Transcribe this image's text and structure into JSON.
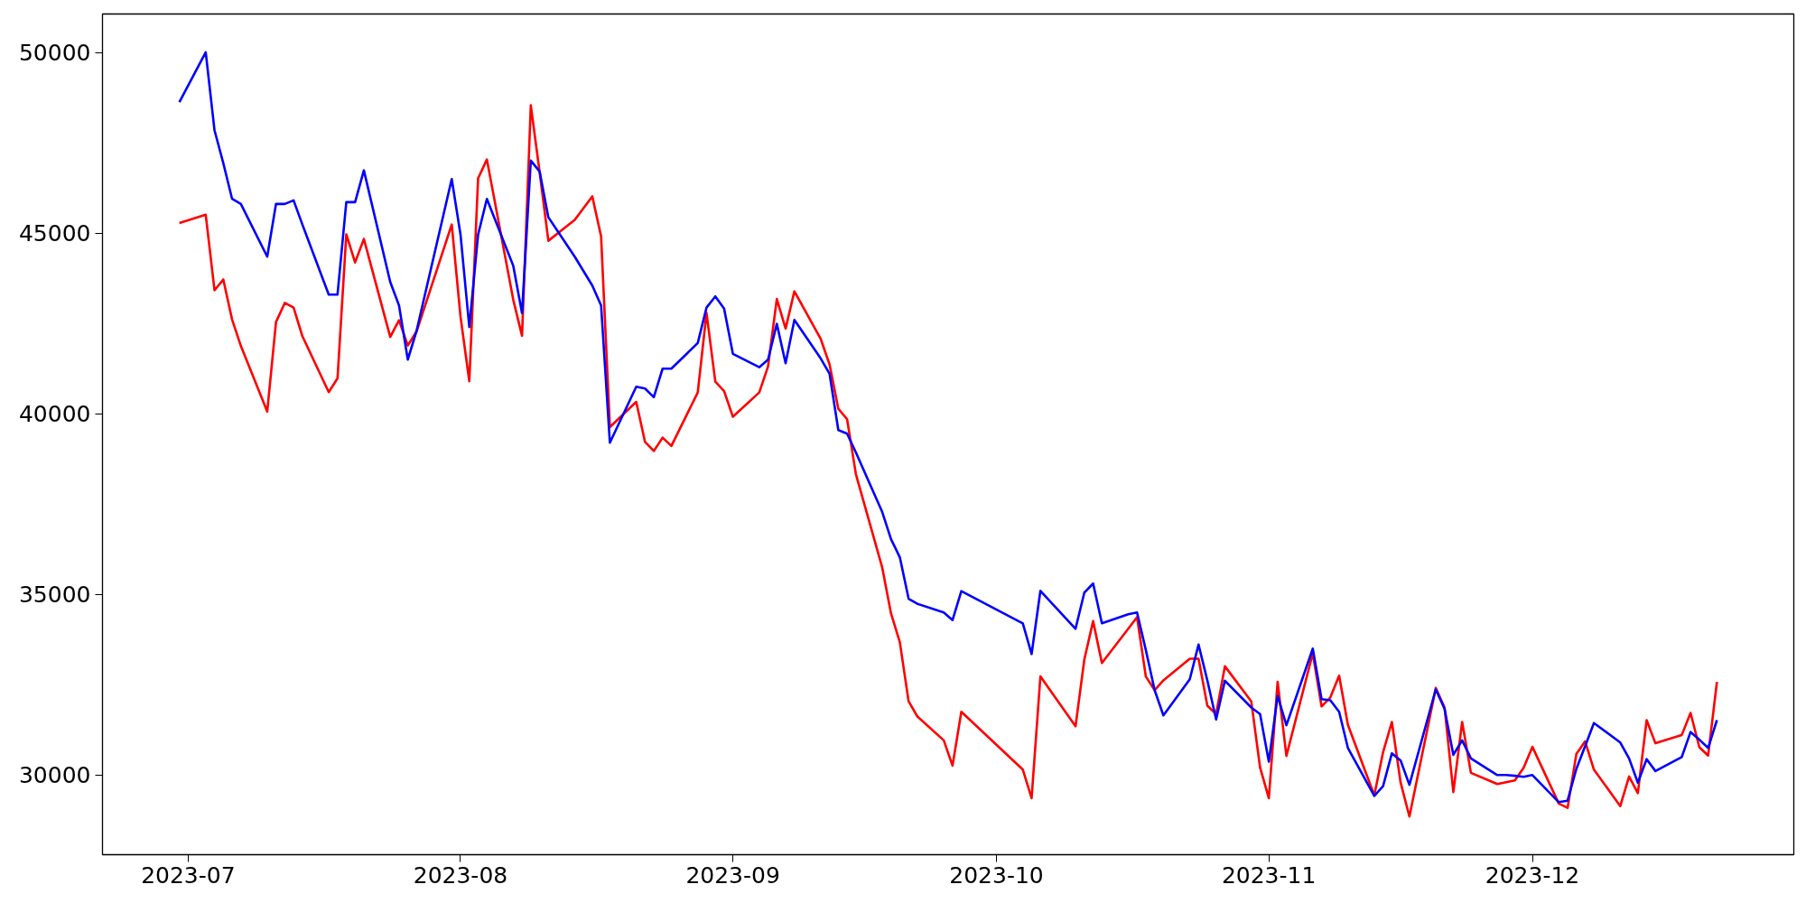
{
  "chart_data": {
    "type": "line",
    "x": [
      "2023-06-30",
      "2023-07-03",
      "2023-07-04",
      "2023-07-05",
      "2023-07-06",
      "2023-07-07",
      "2023-07-10",
      "2023-07-11",
      "2023-07-12",
      "2023-07-13",
      "2023-07-14",
      "2023-07-17",
      "2023-07-18",
      "2023-07-19",
      "2023-07-20",
      "2023-07-21",
      "2023-07-24",
      "2023-07-25",
      "2023-07-26",
      "2023-07-27",
      "2023-07-31",
      "2023-08-01",
      "2023-08-02",
      "2023-08-03",
      "2023-08-04",
      "2023-08-07",
      "2023-08-08",
      "2023-08-09",
      "2023-08-10",
      "2023-08-11",
      "2023-08-14",
      "2023-08-16",
      "2023-08-17",
      "2023-08-18",
      "2023-08-21",
      "2023-08-22",
      "2023-08-23",
      "2023-08-24",
      "2023-08-25",
      "2023-08-28",
      "2023-08-29",
      "2023-08-30",
      "2023-08-31",
      "2023-09-01",
      "2023-09-04",
      "2023-09-05",
      "2023-09-06",
      "2023-09-07",
      "2023-09-08",
      "2023-09-11",
      "2023-09-12",
      "2023-09-13",
      "2023-09-14",
      "2023-09-15",
      "2023-09-18",
      "2023-09-19",
      "2023-09-20",
      "2023-09-21",
      "2023-09-22",
      "2023-09-25",
      "2023-09-26",
      "2023-09-27",
      "2023-10-04",
      "2023-10-05",
      "2023-10-06",
      "2023-10-10",
      "2023-10-11",
      "2023-10-12",
      "2023-10-13",
      "2023-10-16",
      "2023-10-17",
      "2023-10-18",
      "2023-10-19",
      "2023-10-20",
      "2023-10-23",
      "2023-10-24",
      "2023-10-25",
      "2023-10-26",
      "2023-10-27",
      "2023-10-30",
      "2023-10-31",
      "2023-11-01",
      "2023-11-02",
      "2023-11-03",
      "2023-11-06",
      "2023-11-07",
      "2023-11-08",
      "2023-11-09",
      "2023-11-10",
      "2023-11-13",
      "2023-11-14",
      "2023-11-15",
      "2023-11-16",
      "2023-11-17",
      "2023-11-20",
      "2023-11-21",
      "2023-11-22",
      "2023-11-23",
      "2023-11-24",
      "2023-11-27",
      "2023-11-28",
      "2023-11-29",
      "2023-11-30",
      "2023-12-01",
      "2023-12-04",
      "2023-12-05",
      "2023-12-06",
      "2023-12-07",
      "2023-12-08",
      "2023-12-11",
      "2023-12-12",
      "2023-12-13",
      "2023-12-14",
      "2023-12-15",
      "2023-12-18",
      "2023-12-19",
      "2023-12-20",
      "2023-12-21",
      "2023-12-22"
    ],
    "series": [
      {
        "color": "#ff0000",
        "values": [
          45280,
          45510,
          43420,
          43720,
          42610,
          41880,
          40060,
          42540,
          43070,
          42940,
          42150,
          40600,
          40980,
          44970,
          44190,
          44840,
          42130,
          42590,
          41890,
          42280,
          45240,
          42690,
          40900,
          46520,
          47040,
          43160,
          42160,
          48540,
          46700,
          44790,
          45370,
          46020,
          44910,
          39630,
          40330,
          39220,
          38970,
          39340,
          39110,
          40590,
          42790,
          40890,
          40630,
          39920,
          40590,
          41310,
          43180,
          42360,
          43390,
          42070,
          41370,
          40140,
          39850,
          38330,
          35740,
          34470,
          33680,
          32040,
          31620,
          30960,
          30260,
          31750,
          30150,
          29360,
          32730,
          31350,
          33200,
          34260,
          33100,
          34050,
          34370,
          32730,
          32350,
          32620,
          33220,
          33220,
          31920,
          31690,
          33010,
          32040,
          30210,
          29360,
          32580,
          30530,
          33370,
          31900,
          32150,
          32750,
          31390,
          29440,
          30630,
          31470,
          29790,
          28850,
          32410,
          31870,
          29530,
          31470,
          30060,
          29750,
          29800,
          29850,
          30200,
          30780,
          29210,
          29090,
          30580,
          30930,
          30150,
          29140,
          29960,
          29500,
          31520,
          30880,
          31110,
          31720,
          30770,
          30540,
          32580
        ]
      },
      {
        "color": "#0000ff",
        "values": [
          48630,
          50010,
          47850,
          46940,
          45950,
          45810,
          44350,
          45810,
          45810,
          45910,
          45240,
          43300,
          43300,
          45860,
          45860,
          46740,
          43650,
          43000,
          41500,
          42300,
          46500,
          44960,
          42400,
          44960,
          45950,
          44100,
          42790,
          47010,
          46710,
          45440,
          44350,
          43550,
          43000,
          39200,
          40750,
          40700,
          40460,
          41250,
          41250,
          41960,
          42940,
          43250,
          42910,
          41660,
          41290,
          41500,
          42490,
          41400,
          42600,
          41530,
          41110,
          39550,
          39450,
          38930,
          37280,
          36530,
          36030,
          34880,
          34740,
          34500,
          34290,
          35090,
          34200,
          33350,
          35100,
          34050,
          35050,
          35300,
          34200,
          34450,
          34500,
          33460,
          32350,
          31650,
          32650,
          33610,
          32620,
          31540,
          32610,
          31870,
          31690,
          30370,
          32190,
          31380,
          33500,
          32100,
          32070,
          31750,
          30750,
          29420,
          29690,
          30600,
          30400,
          29730,
          32370,
          31830,
          30560,
          30960,
          30460,
          30000,
          30000,
          29980,
          29950,
          30000,
          29250,
          29290,
          30170,
          30800,
          31440,
          30900,
          30460,
          29790,
          30440,
          30110,
          30500,
          31190,
          30980,
          30750,
          31520
        ]
      }
    ],
    "xlim": [
      "2023-06-21T06:00",
      "2023-12-30T18:00"
    ],
    "xticks": [
      {
        "value": "2023-07-01",
        "label": "2023-07"
      },
      {
        "value": "2023-08-01",
        "label": "2023-08"
      },
      {
        "value": "2023-09-01",
        "label": "2023-09"
      },
      {
        "value": "2023-10-01",
        "label": "2023-10"
      },
      {
        "value": "2023-11-01",
        "label": "2023-11"
      },
      {
        "value": "2023-12-01",
        "label": "2023-12"
      }
    ],
    "ylim": [
      27795,
      51068
    ],
    "yticks": [
      30000,
      35000,
      40000,
      45000,
      50000
    ]
  }
}
